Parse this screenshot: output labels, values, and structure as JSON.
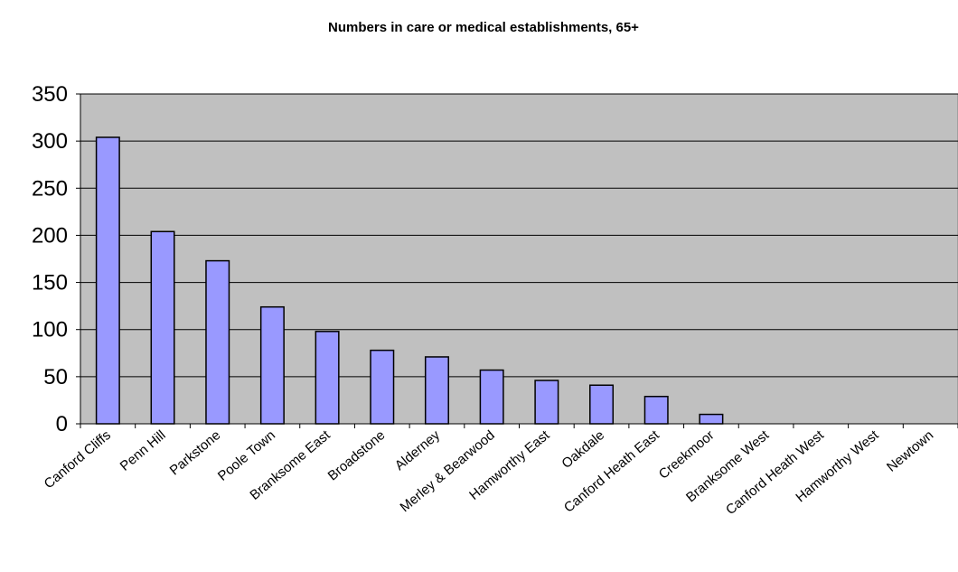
{
  "chart_data": {
    "type": "bar",
    "title": "Numbers in care or medical establishments, 65+",
    "xlabel": "",
    "ylabel": "",
    "categories": [
      "Canford Cliffs",
      "Penn Hill",
      "Parkstone",
      "Poole Town",
      "Branksome East",
      "Broadstone",
      "Alderney",
      "Merley & Bearwood",
      "Hamworthy East",
      "Oakdale",
      "Canford Heath East",
      "Creekmoor",
      "Branksome West",
      "Canford Heath West",
      "Hamworthy West",
      "Newtown"
    ],
    "values": [
      304,
      204,
      173,
      124,
      98,
      78,
      71,
      57,
      46,
      41,
      29,
      10,
      0,
      0,
      0,
      0
    ],
    "ylim": [
      0,
      350
    ],
    "yticks": [
      "0",
      "50",
      "100",
      "150",
      "200",
      "250",
      "300",
      "350"
    ],
    "grid": true,
    "legend": "none",
    "colors": {
      "plot_background": "#c0c0c0",
      "bar_fill": "#9999ff",
      "bar_stroke": "#000000",
      "gridline": "#000000"
    }
  }
}
